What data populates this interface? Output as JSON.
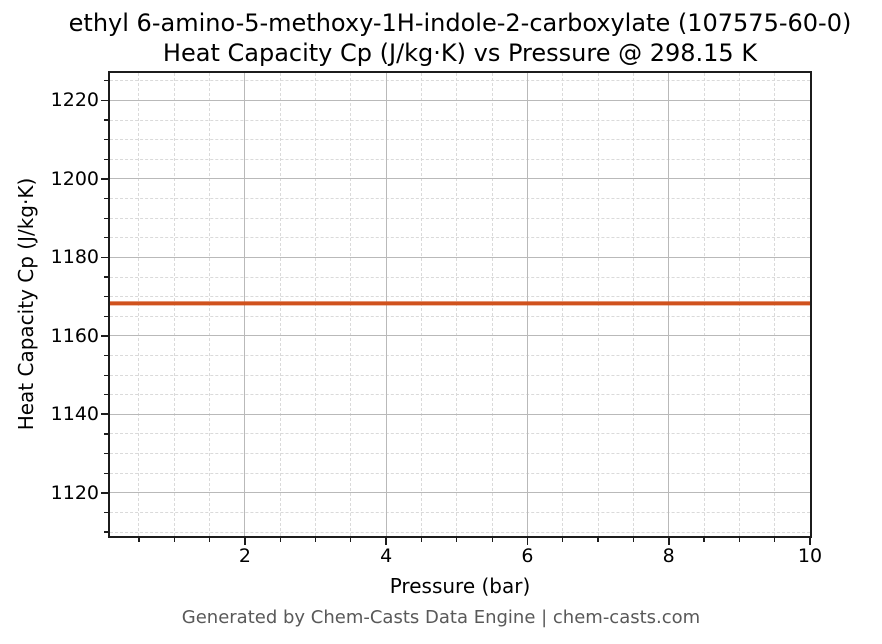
{
  "footer": "Generated by Chem-Casts Data Engine | chem-casts.com",
  "chart_data": {
    "type": "line",
    "title_lines": [
      "ethyl 6-amino-5-methoxy-1H-indole-2-carboxylate (107575-60-0)",
      "Heat Capacity Cp (J/kg·K) vs Pressure @ 298.15 K"
    ],
    "xlabel": "Pressure (bar)",
    "ylabel": "Heat Capacity Cp (J/kg·K)",
    "xlim": [
      0.09,
      10
    ],
    "ylim": [
      1109,
      1227
    ],
    "x_major_ticks": [
      2,
      4,
      6,
      8,
      10
    ],
    "y_major_ticks": [
      1120,
      1140,
      1160,
      1180,
      1200,
      1220
    ],
    "x_minor_step": 0.5,
    "y_minor_step": 5,
    "grid": "major solid + minor dashed",
    "legend": false,
    "background": "#ffffff",
    "axis_color": "#1c1c1c",
    "major_grid_color": "#b9b9b9",
    "minor_grid_color": "#dadada",
    "footer_color": "#595959",
    "series": [
      {
        "name": "Heat Capacity Cp",
        "color": "#d0521e",
        "line_width": 4,
        "x": [
          0.09,
          10
        ],
        "y": [
          1168.3,
          1168.3
        ]
      }
    ]
  }
}
